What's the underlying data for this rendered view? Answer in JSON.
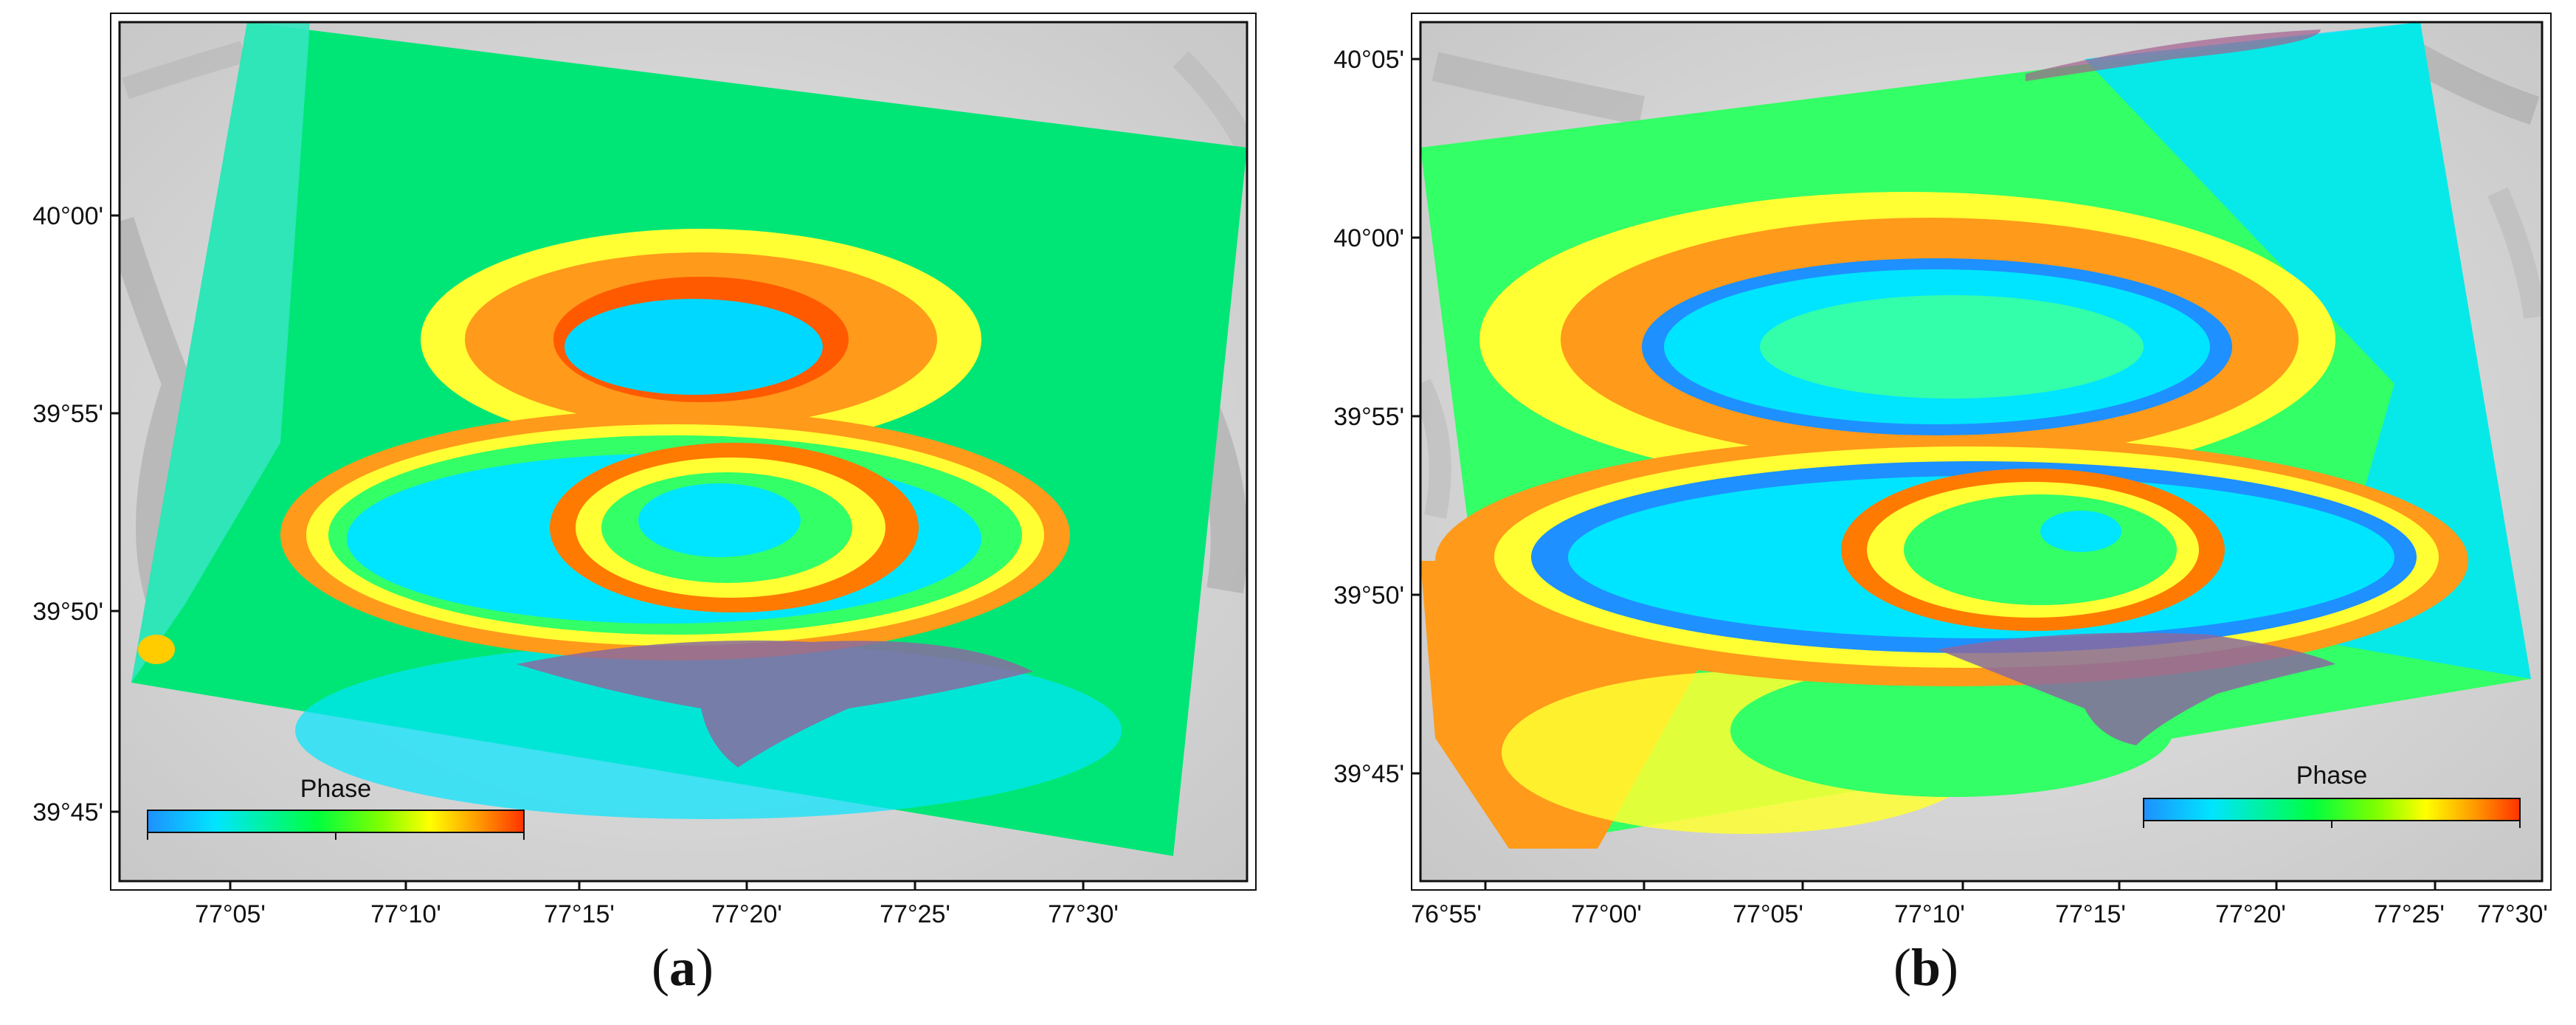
{
  "figure": {
    "panels": [
      {
        "id": "a",
        "caption_letter": "a",
        "legend_title": "Phase",
        "x_ticks": [
          "77°05'",
          "77°10'",
          "77°15'",
          "77°20'",
          "77°25'",
          "77°30'"
        ],
        "y_ticks": [
          "40°00'",
          "39°55'",
          "39°50'",
          "39°45'"
        ]
      },
      {
        "id": "b",
        "caption_letter": "b",
        "legend_title": "Phase",
        "x_ticks": [
          "76°55'",
          "77°00'",
          "77°05'",
          "77°10'",
          "77°15'",
          "77°20'",
          "77°25'",
          "77°30'"
        ],
        "y_ticks": [
          "40°05'",
          "40°00'",
          "39°55'",
          "39°50'",
          "39°45'"
        ]
      }
    ],
    "colors": {
      "phase_scale": [
        "#1e90ff",
        "#00e5ff",
        "#00ff40",
        "#7fff00",
        "#ffff00",
        "#ff9900",
        "#ff3300"
      ],
      "background_relief": "#d9d9d9"
    }
  }
}
